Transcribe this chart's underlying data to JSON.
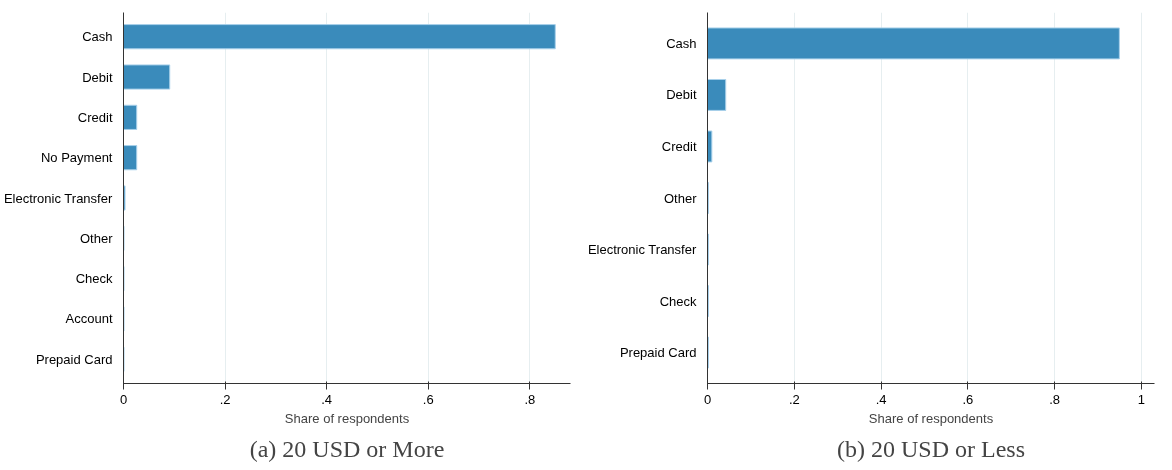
{
  "chart_data": [
    {
      "type": "bar",
      "orientation": "horizontal",
      "title": "(a) 20 USD or More",
      "xlabel": "Share of respondents",
      "categories": [
        "Cash",
        "Debit",
        "Credit",
        "No Payment",
        "Electronic Transfer",
        "Other",
        "Check",
        "Account",
        "Prepaid Card"
      ],
      "values": [
        0.85,
        0.091,
        0.026,
        0.026,
        0.003,
        0.001,
        0.001,
        0.001,
        0.001
      ],
      "color": "#3a8bbb",
      "xlim": [
        0,
        0.88
      ],
      "xticks": [
        0,
        {
          "value": 0.2,
          "label": ".2"
        },
        {
          "value": 0.4,
          "label": ".4"
        },
        {
          "value": 0.6,
          "label": ".6"
        },
        {
          "value": 0.8,
          "label": ".8"
        }
      ],
      "grid": "x"
    },
    {
      "type": "bar",
      "orientation": "horizontal",
      "title": "(b) 20 USD or Less",
      "xlabel": "Share of respondents",
      "categories": [
        "Cash",
        "Debit",
        "Credit",
        "Other",
        "Electronic Transfer",
        "Check",
        "Prepaid Card"
      ],
      "values": [
        0.949,
        0.042,
        0.01,
        0.002,
        0.002,
        0.002,
        0.002
      ],
      "color": "#3a8bbb",
      "xlim": [
        0,
        1.03
      ],
      "xticks": [
        0,
        {
          "value": 0.2,
          "label": ".2"
        },
        {
          "value": 0.4,
          "label": ".4"
        },
        {
          "value": 0.6,
          "label": ".6"
        },
        {
          "value": 0.8,
          "label": ".8"
        },
        1
      ],
      "grid": "x"
    }
  ]
}
